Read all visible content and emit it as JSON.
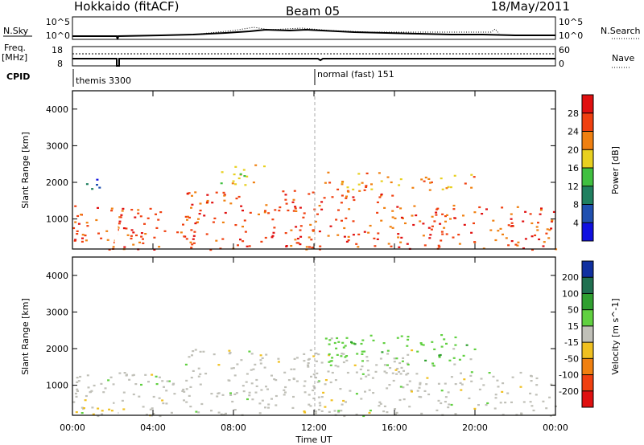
{
  "header": {
    "station": "Hokkaido (fitACF)",
    "beam": "Beam 05",
    "date": "18/May/2011"
  },
  "header_panels": {
    "nsky_label": "N.Sky",
    "nsky_ticks": [
      "10^5",
      "10^0"
    ],
    "nsearch_label": "N.Search",
    "nsearch_ticks": [
      "10^5",
      "10^0"
    ],
    "freq_label": "Freq.",
    "freq_unit": "[MHz]",
    "freq_ticks": [
      "18",
      "8"
    ],
    "nave_label": "Nave",
    "nave_ticks": [
      "60",
      "0"
    ],
    "cpid_label": "CPID",
    "cpid_segments": [
      "themis 3300",
      "normal (fast) 151"
    ]
  },
  "time_axis": {
    "label": "Time UT",
    "ticks": [
      "00:00",
      "04:00",
      "08:00",
      "12:00",
      "16:00",
      "20:00",
      "00:00"
    ]
  },
  "range_axis": {
    "label": "Slant Range [km]",
    "ticks": [
      "1000",
      "2000",
      "3000",
      "4000"
    ],
    "range": [
      180,
      4500
    ]
  },
  "chart_data": [
    {
      "type": "heatmap",
      "quantity": "Power",
      "colorbar_label": "Power [dB]",
      "ylabel": "Slant Range [km]",
      "xlabel": "",
      "x_range_hours": [
        0,
        24
      ],
      "ylim": [
        180,
        4500
      ],
      "colorbar_ticks": [
        "4",
        "8",
        "12",
        "16",
        "20",
        "24",
        "28"
      ],
      "colorbar_colors": [
        "#1010e0",
        "#2050b0",
        "#208060",
        "#40c040",
        "#e8d020",
        "#f08010",
        "#f04010",
        "#e01010"
      ],
      "regions": [
        {
          "t0": 0.0,
          "t1": 24.0,
          "r0": 180,
          "r1": 1400,
          "level": 6
        },
        {
          "t0": 5.5,
          "t1": 16.0,
          "r0": 1400,
          "r1": 1800,
          "level": 6
        },
        {
          "t0": 12.5,
          "t1": 20.0,
          "r0": 1800,
          "r1": 2300,
          "level": 5
        },
        {
          "t0": 7.0,
          "t1": 9.5,
          "r0": 1900,
          "r1": 2500,
          "level": 4
        },
        {
          "t0": 0.5,
          "t1": 2.0,
          "r0": 1800,
          "r1": 2100,
          "level": 1
        }
      ]
    },
    {
      "type": "heatmap",
      "quantity": "Velocity",
      "colorbar_label": "Velocity [m s^-1]",
      "ylabel": "Slant Range [km]",
      "xlabel": "Time UT",
      "x_range_hours": [
        0,
        24
      ],
      "ylim": [
        180,
        4500
      ],
      "colorbar_ticks": [
        "200",
        "100",
        "50",
        "15",
        "-15",
        "-50",
        "-100",
        "-200"
      ],
      "colorbar_colors": [
        "#1030a0",
        "#207050",
        "#30a030",
        "#60d040",
        "#c0c0b8",
        "#f0c020",
        "#f08010",
        "#f04010",
        "#e01010"
      ],
      "regions": [
        {
          "t0": 0.0,
          "t1": 24.0,
          "r0": 180,
          "r1": 1400,
          "level": 4
        },
        {
          "t0": 5.5,
          "t1": 17.0,
          "r0": 1400,
          "r1": 2000,
          "level": 4
        },
        {
          "t0": 12.5,
          "t1": 20.0,
          "r0": 1500,
          "r1": 2400,
          "level": 3
        },
        {
          "t0": 0.0,
          "t1": 3.0,
          "r0": 180,
          "r1": 400,
          "level": 5
        }
      ]
    }
  ]
}
